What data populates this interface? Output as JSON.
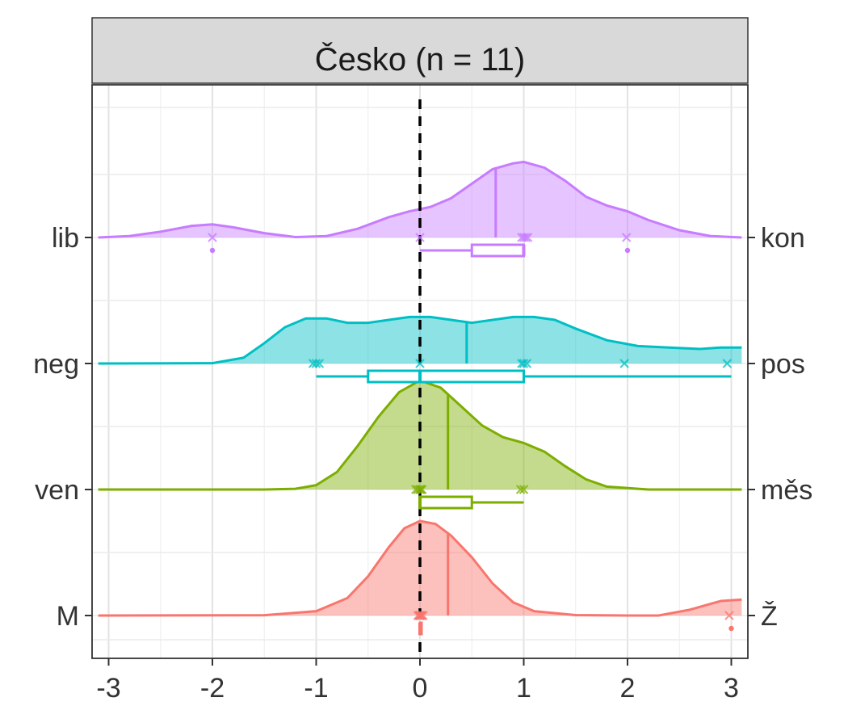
{
  "chart_data": {
    "type": "ridgeline",
    "title": "Česko (n = 11)",
    "xlabel": "",
    "ylabel": "",
    "xlim": [
      -3.1,
      3.1
    ],
    "x_ticks": [
      "-3",
      "-2",
      "-1",
      "0",
      "1",
      "2",
      "3"
    ],
    "x_tick_values": [
      -3,
      -2,
      -1,
      0,
      1,
      2,
      3
    ],
    "reference_line": {
      "x": 0,
      "style": "dashed",
      "color": "#000000"
    },
    "grid": true,
    "series": [
      {
        "left_label": "M",
        "right_label": "Ž",
        "color": "#F8766D",
        "density": [
          [
            -3.1,
            0
          ],
          [
            -1.5,
            0.002
          ],
          [
            -1,
            0.03
          ],
          [
            -0.7,
            0.12
          ],
          [
            -0.5,
            0.27
          ],
          [
            -0.3,
            0.47
          ],
          [
            -0.15,
            0.6
          ],
          [
            0,
            0.65
          ],
          [
            0.15,
            0.63
          ],
          [
            0.3,
            0.55
          ],
          [
            0.5,
            0.4
          ],
          [
            0.7,
            0.22
          ],
          [
            0.9,
            0.09
          ],
          [
            1.1,
            0.03
          ],
          [
            1.5,
            0.003
          ],
          [
            2,
            0
          ],
          [
            2.3,
            0
          ],
          [
            2.6,
            0.04
          ],
          [
            2.9,
            0.1
          ],
          [
            3.1,
            0.11
          ]
        ],
        "mean": 0.27,
        "points": [
          -0.02,
          -0.01,
          0,
          0,
          0,
          0.01,
          0.02,
          0.03,
          2.98
        ],
        "box": {
          "min": 0,
          "q1": 0,
          "median": 0,
          "q3": 0,
          "max": 0
        },
        "outliers": [
          3
        ]
      },
      {
        "left_label": "ven",
        "right_label": "měs",
        "color": "#7CAE00",
        "density": [
          [
            -3.1,
            0
          ],
          [
            -1.5,
            0
          ],
          [
            -1.2,
            0.005
          ],
          [
            -1,
            0.03
          ],
          [
            -0.8,
            0.12
          ],
          [
            -0.6,
            0.3
          ],
          [
            -0.4,
            0.5
          ],
          [
            -0.2,
            0.67
          ],
          [
            0,
            0.75
          ],
          [
            0.2,
            0.7
          ],
          [
            0.4,
            0.57
          ],
          [
            0.6,
            0.44
          ],
          [
            0.8,
            0.36
          ],
          [
            1,
            0.32
          ],
          [
            1.2,
            0.26
          ],
          [
            1.4,
            0.16
          ],
          [
            1.6,
            0.07
          ],
          [
            1.8,
            0.02
          ],
          [
            2.2,
            0
          ],
          [
            3.1,
            0
          ]
        ],
        "mean": 0.27,
        "points": [
          -0.04,
          -0.02,
          0,
          0.01,
          0.02,
          0.97,
          1.0
        ],
        "box": {
          "min": 0,
          "q1": 0,
          "median": 0,
          "q3": 0.5,
          "max": 1
        },
        "outliers": []
      },
      {
        "left_label": "neg",
        "right_label": "pos",
        "color": "#00BFC4",
        "density": [
          [
            -3.1,
            0
          ],
          [
            -2,
            0.002
          ],
          [
            -1.7,
            0.04
          ],
          [
            -1.5,
            0.14
          ],
          [
            -1.3,
            0.25
          ],
          [
            -1.1,
            0.31
          ],
          [
            -0.9,
            0.31
          ],
          [
            -0.7,
            0.28
          ],
          [
            -0.5,
            0.28
          ],
          [
            -0.3,
            0.3
          ],
          [
            -0.1,
            0.32
          ],
          [
            0.1,
            0.32
          ],
          [
            0.3,
            0.3
          ],
          [
            0.5,
            0.28
          ],
          [
            0.7,
            0.3
          ],
          [
            0.9,
            0.32
          ],
          [
            1.1,
            0.32
          ],
          [
            1.3,
            0.3
          ],
          [
            1.5,
            0.24
          ],
          [
            1.8,
            0.16
          ],
          [
            2.1,
            0.12
          ],
          [
            2.4,
            0.11
          ],
          [
            2.7,
            0.1
          ],
          [
            2.9,
            0.11
          ],
          [
            3.1,
            0.11
          ]
        ],
        "mean": 0.45,
        "points": [
          -1.03,
          -1.0,
          -0.97,
          0,
          0.98,
          1.0,
          1.03,
          1.97,
          2.96
        ],
        "box": {
          "min": -1,
          "q1": -0.5,
          "median": 0,
          "q3": 1,
          "max": 3
        },
        "outliers": []
      },
      {
        "left_label": "lib",
        "right_label": "kon",
        "color": "#C77CFF",
        "density": [
          [
            -3.1,
            0
          ],
          [
            -2.8,
            0.01
          ],
          [
            -2.5,
            0.04
          ],
          [
            -2.2,
            0.08
          ],
          [
            -2,
            0.09
          ],
          [
            -1.8,
            0.07
          ],
          [
            -1.5,
            0.03
          ],
          [
            -1.2,
            0.003
          ],
          [
            -0.9,
            0.01
          ],
          [
            -0.6,
            0.06
          ],
          [
            -0.3,
            0.14
          ],
          [
            -0.1,
            0.18
          ],
          [
            0.1,
            0.21
          ],
          [
            0.3,
            0.27
          ],
          [
            0.5,
            0.37
          ],
          [
            0.7,
            0.47
          ],
          [
            0.9,
            0.51
          ],
          [
            1,
            0.52
          ],
          [
            1.2,
            0.48
          ],
          [
            1.4,
            0.39
          ],
          [
            1.6,
            0.28
          ],
          [
            1.8,
            0.22
          ],
          [
            2,
            0.18
          ],
          [
            2.2,
            0.12
          ],
          [
            2.5,
            0.05
          ],
          [
            2.8,
            0.01
          ],
          [
            3.1,
            0
          ]
        ],
        "mean": 0.73,
        "points": [
          -2.0,
          0,
          0.98,
          1.0,
          1.02,
          1.04,
          1.99
        ],
        "box": {
          "min": 0,
          "q1": 0.5,
          "median": 1,
          "q3": 1,
          "max": 1
        },
        "outliers": [
          -2,
          2
        ]
      }
    ]
  }
}
